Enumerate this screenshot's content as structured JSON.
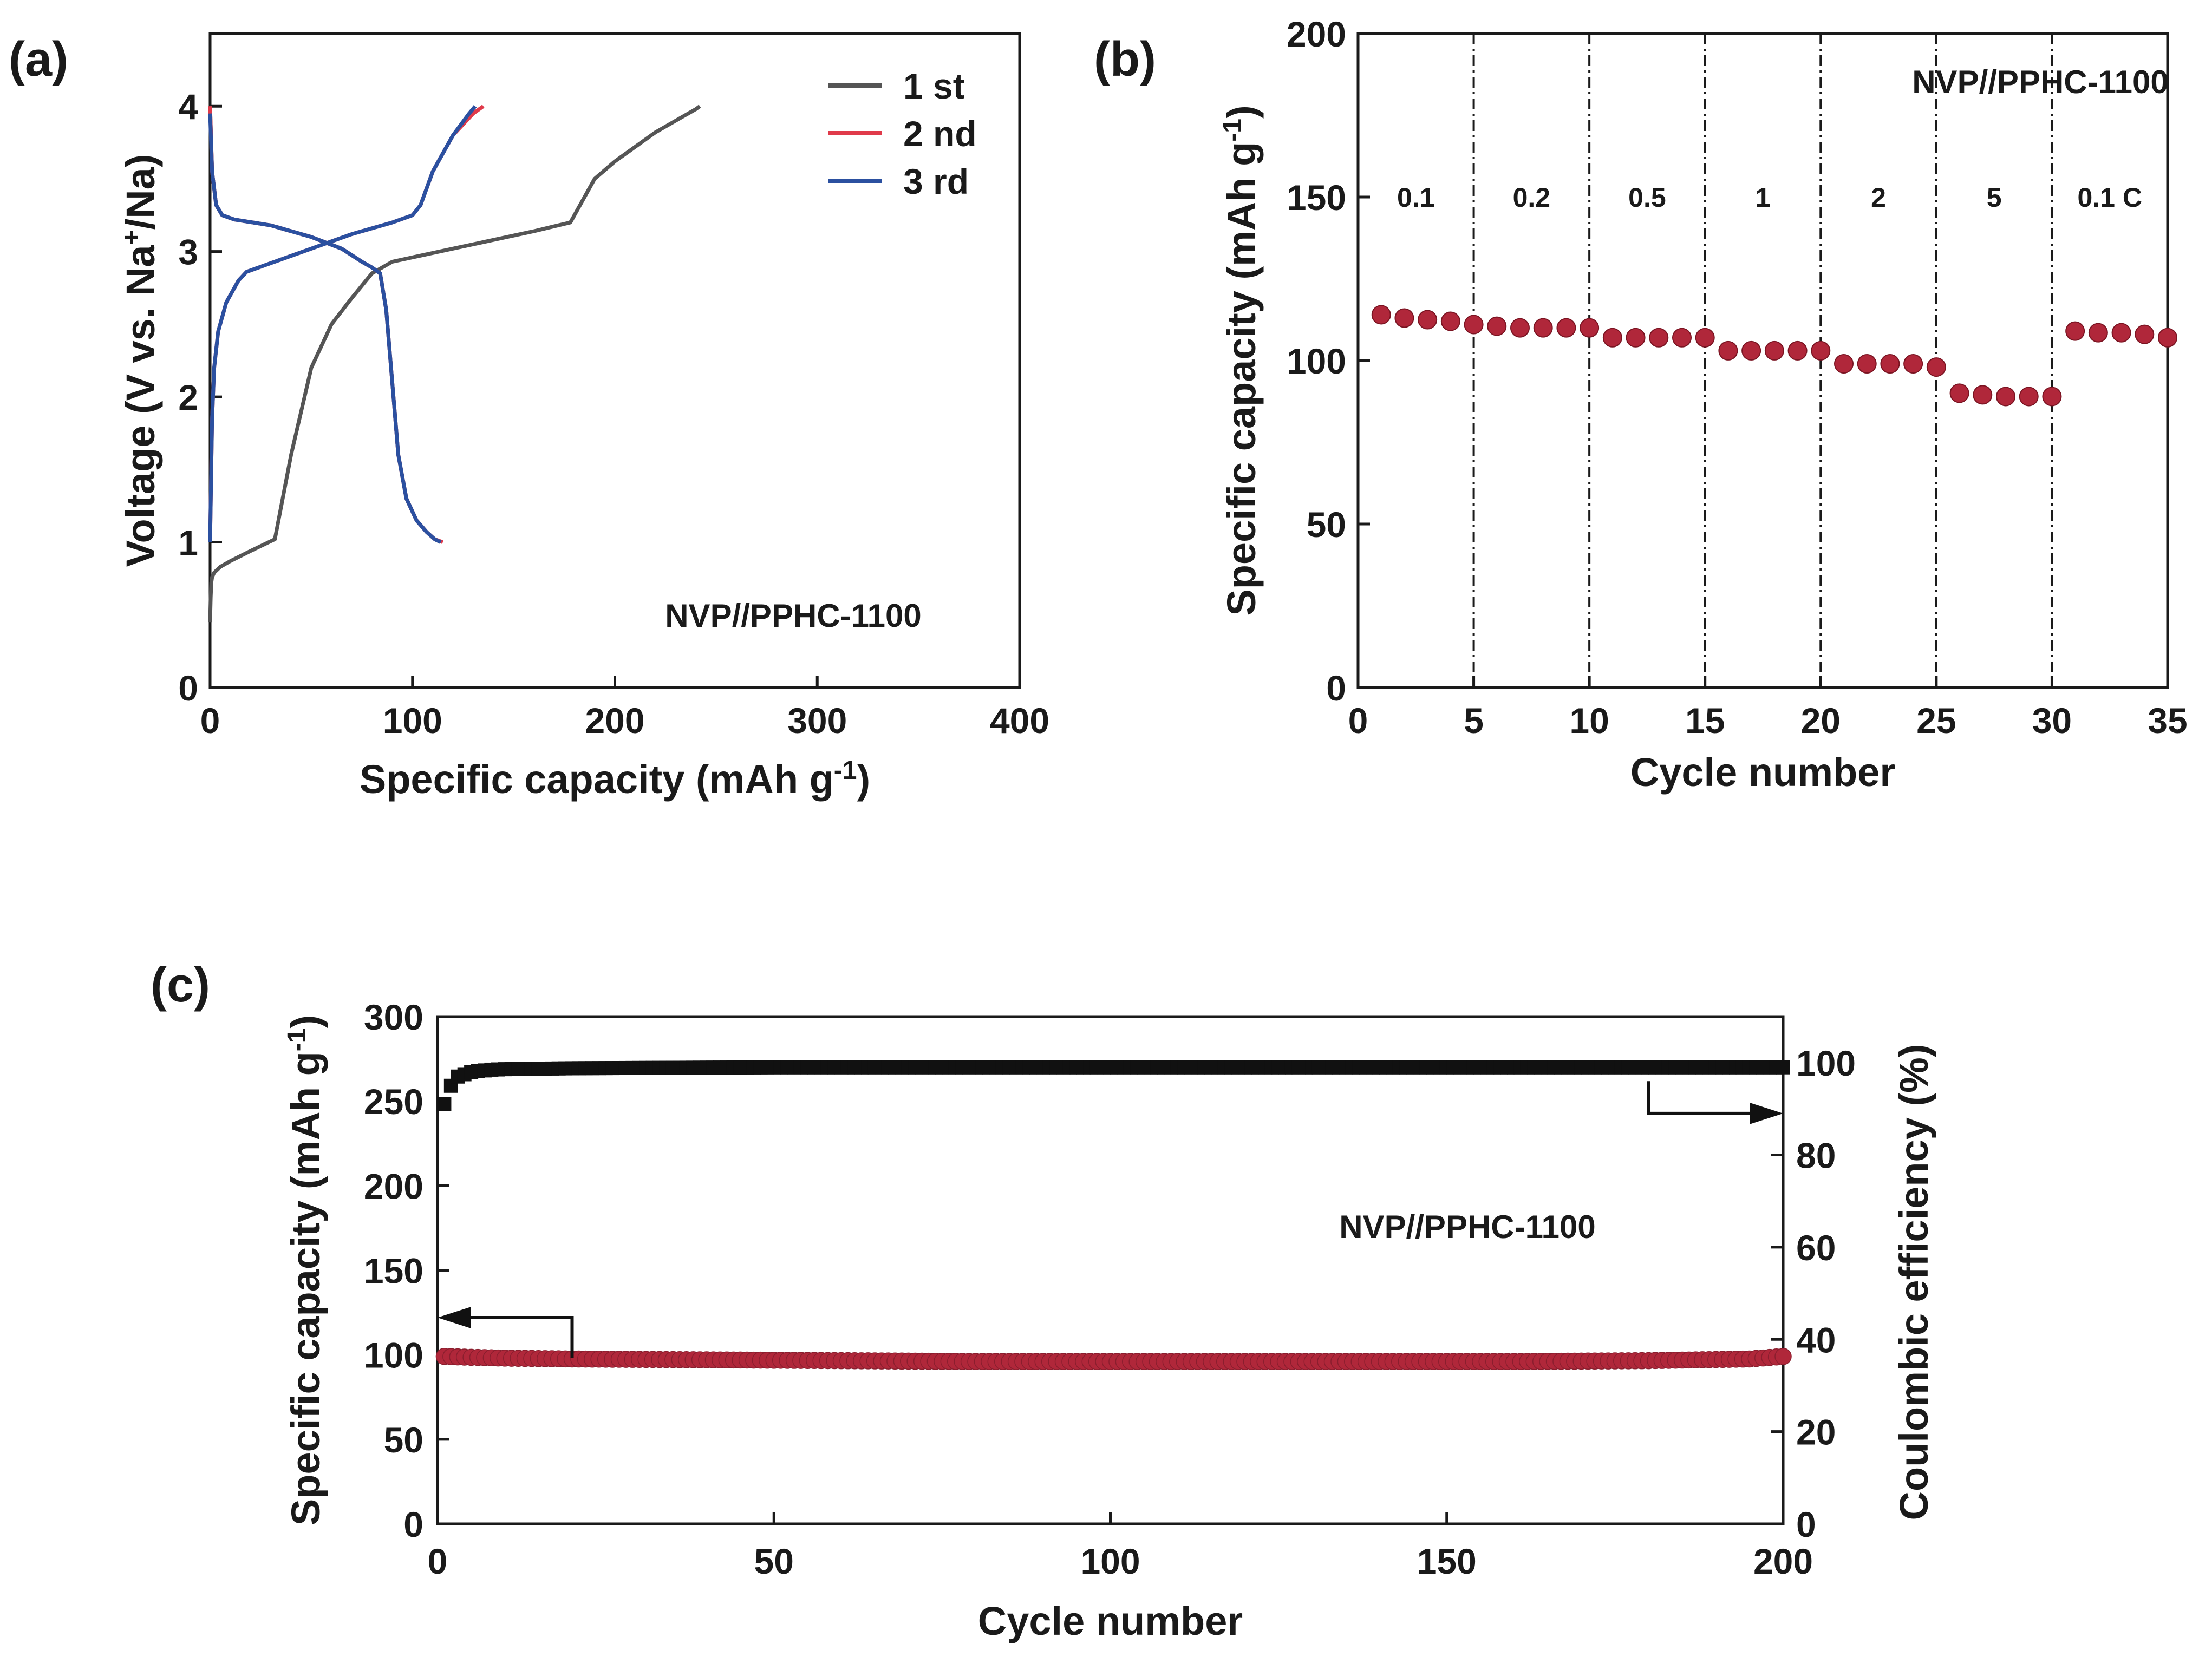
{
  "figure": {
    "panels": [
      "(a)",
      "(b)",
      "(c)"
    ]
  },
  "chart_data": [
    {
      "id": "a",
      "type": "line",
      "xlabel": "Specific capacity (mAh g",
      "xlabel_sup": "-1",
      "xlabel_end": ")",
      "ylabel": "Voltage (V vs. Na",
      "ylabel_sup": "+",
      "ylabel_end": "/Na)",
      "xlim": [
        0,
        400
      ],
      "ylim": [
        0,
        4.5
      ],
      "xticks": [
        0,
        100,
        200,
        300,
        400
      ],
      "yticks": [
        0,
        1,
        2,
        3,
        4
      ],
      "annotation": "NVP//PPHC-1100",
      "legend_position": "top-right",
      "series": [
        {
          "name": "1 st",
          "color": "#555555",
          "segments": [
            {
              "x": [
                0,
                0.3,
                0.6,
                1,
                2,
                5,
                10,
                20,
                32,
                40,
                50,
                60,
                70,
                80,
                90,
                100,
                120,
                140,
                160,
                172,
                178,
                180,
                190,
                200,
                220,
                240,
                242
              ],
              "y": [
                0.45,
                0.62,
                0.72,
                0.76,
                0.79,
                0.83,
                0.87,
                0.94,
                1.02,
                1.6,
                2.2,
                2.5,
                2.68,
                2.85,
                2.93,
                2.96,
                3.02,
                3.08,
                3.14,
                3.18,
                3.2,
                3.25,
                3.5,
                3.62,
                3.82,
                3.98,
                4.0
              ]
            },
            {
              "x": [
                0,
                1,
                3,
                6,
                12,
                30,
                50,
                65,
                75,
                80,
                84,
                87,
                90,
                93,
                97,
                102,
                107,
                111,
                114
              ],
              "y": [
                4.0,
                3.55,
                3.32,
                3.25,
                3.22,
                3.18,
                3.1,
                3.02,
                2.93,
                2.89,
                2.85,
                2.6,
                2.1,
                1.6,
                1.3,
                1.15,
                1.07,
                1.02,
                1.0
              ]
            }
          ]
        },
        {
          "name": "2 nd",
          "color": "#e03a4a",
          "segments": [
            {
              "x": [
                0,
                0.5,
                1,
                2,
                4,
                8,
                14,
                18,
                30,
                50,
                70,
                90,
                100,
                104,
                110,
                120,
                130,
                135
              ],
              "y": [
                1.0,
                1.45,
                1.85,
                2.2,
                2.45,
                2.65,
                2.8,
                2.86,
                2.92,
                3.02,
                3.12,
                3.2,
                3.25,
                3.32,
                3.55,
                3.8,
                3.95,
                4.0
              ]
            },
            {
              "x": [
                0,
                1,
                3,
                6,
                12,
                30,
                50,
                65,
                75,
                80,
                84,
                87,
                90,
                93,
                97,
                102,
                107,
                111,
                115
              ],
              "y": [
                4.0,
                3.55,
                3.32,
                3.25,
                3.22,
                3.18,
                3.1,
                3.02,
                2.93,
                2.89,
                2.85,
                2.6,
                2.1,
                1.6,
                1.3,
                1.15,
                1.07,
                1.02,
                1.0
              ]
            }
          ]
        },
        {
          "name": "3 rd",
          "color": "#2b50a0",
          "segments": [
            {
              "x": [
                0,
                0.5,
                1,
                2,
                4,
                8,
                14,
                18,
                30,
                50,
                70,
                90,
                100,
                104,
                110,
                120,
                128,
                131
              ],
              "y": [
                1.0,
                1.45,
                1.85,
                2.2,
                2.45,
                2.65,
                2.8,
                2.86,
                2.92,
                3.02,
                3.12,
                3.2,
                3.25,
                3.32,
                3.55,
                3.8,
                3.95,
                4.0
              ]
            },
            {
              "x": [
                0,
                1,
                3,
                6,
                12,
                30,
                50,
                65,
                75,
                80,
                84,
                87,
                90,
                93,
                97,
                102,
                107,
                111,
                114
              ],
              "y": [
                3.95,
                3.55,
                3.32,
                3.25,
                3.22,
                3.18,
                3.1,
                3.02,
                2.93,
                2.89,
                2.85,
                2.6,
                2.1,
                1.6,
                1.3,
                1.15,
                1.07,
                1.02,
                1.0
              ]
            }
          ]
        }
      ]
    },
    {
      "id": "b",
      "type": "scatter",
      "xlabel": "Cycle number",
      "ylabel": "Specific capacity (mAh g",
      "ylabel_sup": "-1",
      "ylabel_end": ")",
      "xlim": [
        0,
        35
      ],
      "ylim": [
        0,
        200
      ],
      "xticks": [
        0,
        5,
        10,
        15,
        20,
        25,
        30,
        35
      ],
      "yticks": [
        0,
        50,
        100,
        150,
        200
      ],
      "annotation": "NVP//PPHC-1100",
      "marker_color": "#b0273a",
      "dividers": [
        5,
        10,
        15,
        20,
        25,
        30
      ],
      "rate_labels": [
        "0.1",
        "0.2",
        "0.5",
        "1",
        "2",
        "5",
        "0.1 C"
      ],
      "x": [
        1,
        2,
        3,
        4,
        5,
        6,
        7,
        8,
        9,
        10,
        11,
        12,
        13,
        14,
        15,
        16,
        17,
        18,
        19,
        20,
        21,
        22,
        23,
        24,
        25,
        26,
        27,
        28,
        29,
        30,
        31,
        32,
        33,
        34,
        35
      ],
      "y": [
        114,
        113,
        112.5,
        112,
        111,
        110.5,
        110,
        110,
        110,
        110,
        107,
        107,
        107,
        107,
        107,
        103,
        103,
        103,
        103,
        103,
        99,
        99,
        99,
        99,
        98,
        90,
        89.5,
        89,
        89,
        89,
        109,
        108.5,
        108.5,
        108,
        107
      ]
    },
    {
      "id": "c",
      "type": "scatter",
      "xlabel": "Cycle number",
      "ylabel": "Specific capacity (mAh g",
      "ylabel_sup": "-1",
      "ylabel_end": ")",
      "y2label": "Coulombic efficiency (%)",
      "xlim": [
        0,
        200
      ],
      "ylim": [
        0,
        300
      ],
      "y2lim": [
        0,
        110
      ],
      "xticks": [
        0,
        50,
        100,
        150,
        200
      ],
      "yticks": [
        0,
        50,
        100,
        150,
        200,
        250,
        300
      ],
      "y2ticks": [
        0,
        20,
        40,
        60,
        80,
        100
      ],
      "annotation": "NVP//PPHC-1100",
      "series": [
        {
          "name": "Specific capacity",
          "axis": "left",
          "color": "#b0273a",
          "x": [
            1,
            5,
            10,
            20,
            40,
            60,
            80,
            100,
            120,
            140,
            160,
            180,
            195,
            200
          ],
          "y": [
            99,
            98.5,
            98,
            97.5,
            97,
            96.5,
            96,
            96,
            96,
            96,
            96,
            96.5,
            97.5,
            99
          ]
        },
        {
          "name": "Coulombic efficiency",
          "axis": "right",
          "color": "#111111",
          "x": [
            1,
            2,
            3,
            5,
            8,
            10,
            20,
            50,
            100,
            150,
            180,
            200
          ],
          "y": [
            91,
            95,
            97,
            98,
            98.5,
            98.6,
            98.8,
            99.0,
            99.0,
            99.0,
            99.0,
            99.0
          ]
        }
      ]
    }
  ]
}
